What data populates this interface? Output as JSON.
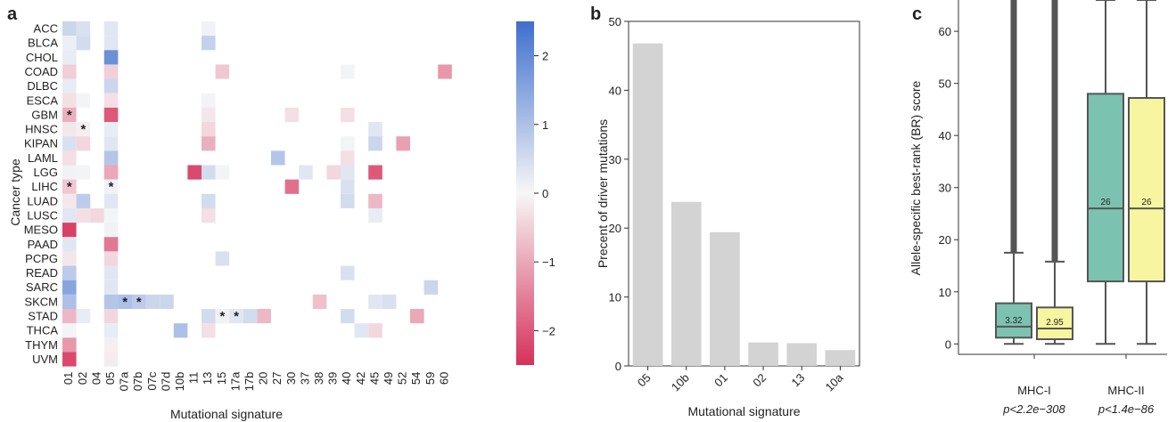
{
  "chart_data": [
    {
      "panel": "a",
      "type": "heatmap",
      "xlabel": "Mutational signature",
      "ylabel": "Cancer type",
      "rows": [
        "ACC",
        "BLCA",
        "CHOL",
        "COAD",
        "DLBC",
        "ESCA",
        "GBM",
        "HNSC",
        "KIPAN",
        "LAML",
        "LGG",
        "LIHC",
        "LUAD",
        "LUSC",
        "MESO",
        "PAAD",
        "PCPG",
        "READ",
        "SARC",
        "SKCM",
        "STAD",
        "THCA",
        "THYM",
        "UVM"
      ],
      "columns": [
        "01",
        "02",
        "04",
        "05",
        "07a",
        "07b",
        "07c",
        "07d",
        "10b",
        "11",
        "13",
        "15",
        "17a",
        "17b",
        "20",
        "27",
        "30",
        "37",
        "38",
        "39",
        "40",
        "42",
        "45",
        "49",
        "52",
        "54",
        "59",
        "60"
      ],
      "colorbar": {
        "min": -2.5,
        "max": 2.5,
        "ticks": [
          2,
          1,
          0,
          -1,
          -2
        ],
        "tick_labels": [
          "2",
          "1",
          "0",
          "−1",
          "−2"
        ],
        "low_color": "#d6315b",
        "mid_color": "#f7f7f7",
        "high_color": "#3e6fce"
      },
      "cells": [
        {
          "row": "ACC",
          "col": "01",
          "value": 0.6
        },
        {
          "row": "ACC",
          "col": "02",
          "value": 0.4
        },
        {
          "row": "ACC",
          "col": "05",
          "value": 0.3
        },
        {
          "row": "ACC",
          "col": "13",
          "value": 0.1
        },
        {
          "row": "BLCA",
          "col": "01",
          "value": 0.15
        },
        {
          "row": "BLCA",
          "col": "02",
          "value": 0.5
        },
        {
          "row": "BLCA",
          "col": "05",
          "value": 0.3
        },
        {
          "row": "BLCA",
          "col": "13",
          "value": 0.7
        },
        {
          "row": "CHOL",
          "col": "01",
          "value": 0.2
        },
        {
          "row": "CHOL",
          "col": "05",
          "value": 1.9
        },
        {
          "row": "COAD",
          "col": "01",
          "value": -0.5
        },
        {
          "row": "COAD",
          "col": "05",
          "value": -0.5
        },
        {
          "row": "COAD",
          "col": "15",
          "value": -0.6
        },
        {
          "row": "COAD",
          "col": "40",
          "value": 0.05
        },
        {
          "row": "COAD",
          "col": "60",
          "value": -1.2
        },
        {
          "row": "DLBC",
          "col": "01",
          "value": 0.2
        },
        {
          "row": "DLBC",
          "col": "05",
          "value": 0.6
        },
        {
          "row": "ESCA",
          "col": "01",
          "value": -0.3
        },
        {
          "row": "ESCA",
          "col": "02",
          "value": 0.05
        },
        {
          "row": "ESCA",
          "col": "05",
          "value": -0.3
        },
        {
          "row": "ESCA",
          "col": "13",
          "value": 0.05
        },
        {
          "row": "GBM",
          "col": "01",
          "value": -0.9,
          "star": true
        },
        {
          "row": "GBM",
          "col": "05",
          "value": -2.0
        },
        {
          "row": "GBM",
          "col": "13",
          "value": -0.2
        },
        {
          "row": "GBM",
          "col": "30",
          "value": -0.3
        },
        {
          "row": "GBM",
          "col": "40",
          "value": -0.3
        },
        {
          "row": "HNSC",
          "col": "01",
          "value": -0.2
        },
        {
          "row": "HNSC",
          "col": "02",
          "value": -0.1,
          "star": true
        },
        {
          "row": "HNSC",
          "col": "05",
          "value": 0.2
        },
        {
          "row": "HNSC",
          "col": "13",
          "value": -0.4
        },
        {
          "row": "HNSC",
          "col": "45",
          "value": 0.3
        },
        {
          "row": "KIPAN",
          "col": "01",
          "value": 0.4
        },
        {
          "row": "KIPAN",
          "col": "02",
          "value": -0.4
        },
        {
          "row": "KIPAN",
          "col": "05",
          "value": 0.3
        },
        {
          "row": "KIPAN",
          "col": "13",
          "value": -0.9
        },
        {
          "row": "KIPAN",
          "col": "40",
          "value": 0.05
        },
        {
          "row": "KIPAN",
          "col": "45",
          "value": 0.6
        },
        {
          "row": "KIPAN",
          "col": "52",
          "value": -1.1
        },
        {
          "row": "LAML",
          "col": "01",
          "value": -0.3
        },
        {
          "row": "LAML",
          "col": "05",
          "value": 0.9
        },
        {
          "row": "LAML",
          "col": "27",
          "value": 0.9
        },
        {
          "row": "LAML",
          "col": "40",
          "value": -0.3
        },
        {
          "row": "LGG",
          "col": "01",
          "value": 0.1
        },
        {
          "row": "LGG",
          "col": "02",
          "value": 0.05
        },
        {
          "row": "LGG",
          "col": "05",
          "value": -1.0
        },
        {
          "row": "LGG",
          "col": "11",
          "value": -2.2
        },
        {
          "row": "LGG",
          "col": "13",
          "value": 0.5
        },
        {
          "row": "LGG",
          "col": "15",
          "value": 0.05
        },
        {
          "row": "LGG",
          "col": "37",
          "value": 0.3
        },
        {
          "row": "LGG",
          "col": "39",
          "value": -0.4
        },
        {
          "row": "LGG",
          "col": "40",
          "value": 0.3
        },
        {
          "row": "LGG",
          "col": "45",
          "value": -2.0
        },
        {
          "row": "LIHC",
          "col": "01",
          "value": -0.6,
          "star": true
        },
        {
          "row": "LIHC",
          "col": "05",
          "value": 0.1,
          "star": true
        },
        {
          "row": "LIHC",
          "col": "30",
          "value": -1.7
        },
        {
          "row": "LIHC",
          "col": "40",
          "value": 0.4
        },
        {
          "row": "LUAD",
          "col": "01",
          "value": -0.2
        },
        {
          "row": "LUAD",
          "col": "02",
          "value": 0.8
        },
        {
          "row": "LUAD",
          "col": "05",
          "value": 0.3
        },
        {
          "row": "LUAD",
          "col": "13",
          "value": 0.5
        },
        {
          "row": "LUAD",
          "col": "40",
          "value": 0.5
        },
        {
          "row": "LUAD",
          "col": "45",
          "value": -0.8
        },
        {
          "row": "LUSC",
          "col": "01",
          "value": 0.3
        },
        {
          "row": "LUSC",
          "col": "02",
          "value": -0.3
        },
        {
          "row": "LUSC",
          "col": "04",
          "value": -0.4
        },
        {
          "row": "LUSC",
          "col": "05",
          "value": 0.05
        },
        {
          "row": "LUSC",
          "col": "13",
          "value": -0.3
        },
        {
          "row": "LUSC",
          "col": "45",
          "value": 0.2
        },
        {
          "row": "MESO",
          "col": "01",
          "value": -2.3
        },
        {
          "row": "MESO",
          "col": "05",
          "value": 0.1
        },
        {
          "row": "PAAD",
          "col": "01",
          "value": 0.3
        },
        {
          "row": "PAAD",
          "col": "05",
          "value": -1.6
        },
        {
          "row": "PCPG",
          "col": "01",
          "value": -0.2
        },
        {
          "row": "PCPG",
          "col": "05",
          "value": -0.4
        },
        {
          "row": "PCPG",
          "col": "15",
          "value": 0.4
        },
        {
          "row": "READ",
          "col": "01",
          "value": 0.8
        },
        {
          "row": "READ",
          "col": "05",
          "value": 0.3
        },
        {
          "row": "READ",
          "col": "40",
          "value": 0.4
        },
        {
          "row": "SARC",
          "col": "01",
          "value": 1.5
        },
        {
          "row": "SARC",
          "col": "05",
          "value": 0.3
        },
        {
          "row": "SARC",
          "col": "59",
          "value": 0.6
        },
        {
          "row": "SKCM",
          "col": "01",
          "value": 1.0
        },
        {
          "row": "SKCM",
          "col": "05",
          "value": 0.9
        },
        {
          "row": "SKCM",
          "col": "07a",
          "value": 1.0,
          "star": true
        },
        {
          "row": "SKCM",
          "col": "07b",
          "value": 0.8,
          "star": true
        },
        {
          "row": "SKCM",
          "col": "07c",
          "value": 0.6
        },
        {
          "row": "SKCM",
          "col": "07d",
          "value": 0.6
        },
        {
          "row": "SKCM",
          "col": "38",
          "value": -0.7
        },
        {
          "row": "SKCM",
          "col": "45",
          "value": 0.3
        },
        {
          "row": "SKCM",
          "col": "49",
          "value": 0.4
        },
        {
          "row": "STAD",
          "col": "01",
          "value": -0.8
        },
        {
          "row": "STAD",
          "col": "02",
          "value": 0.2
        },
        {
          "row": "STAD",
          "col": "05",
          "value": -0.4
        },
        {
          "row": "STAD",
          "col": "13",
          "value": 0.5
        },
        {
          "row": "STAD",
          "col": "15",
          "value": 0.1,
          "star": true
        },
        {
          "row": "STAD",
          "col": "17a",
          "value": 0.3,
          "star": true
        },
        {
          "row": "STAD",
          "col": "17b",
          "value": 0.5
        },
        {
          "row": "STAD",
          "col": "20",
          "value": -0.8
        },
        {
          "row": "STAD",
          "col": "40",
          "value": 0.5
        },
        {
          "row": "STAD",
          "col": "54",
          "value": -1.0
        },
        {
          "row": "THCA",
          "col": "01",
          "value": 0.05
        },
        {
          "row": "THCA",
          "col": "05",
          "value": 0.2
        },
        {
          "row": "THCA",
          "col": "10b",
          "value": 1.0
        },
        {
          "row": "THCA",
          "col": "13",
          "value": -0.3
        },
        {
          "row": "THCA",
          "col": "42",
          "value": 0.3
        },
        {
          "row": "THCA",
          "col": "45",
          "value": -0.4
        },
        {
          "row": "THYM",
          "col": "01",
          "value": -1.2
        },
        {
          "row": "THYM",
          "col": "05",
          "value": -0.1
        },
        {
          "row": "UVM",
          "col": "01",
          "value": -2.2
        },
        {
          "row": "UVM",
          "col": "05",
          "value": -0.15
        }
      ]
    },
    {
      "panel": "b",
      "type": "bar",
      "xlabel": "Mutational signature",
      "ylabel": "Precent of driver mutations",
      "categories": [
        "05",
        "10b",
        "01",
        "02",
        "13",
        "10a"
      ],
      "values": [
        46.8,
        23.8,
        19.4,
        3.4,
        3.3,
        2.3
      ],
      "ylim": [
        0,
        50
      ],
      "yticks": [
        0,
        10,
        20,
        30,
        40,
        50
      ],
      "bar_color": "#d3d3d3"
    },
    {
      "panel": "c",
      "type": "box",
      "ylabel": "Allele-specific best-rank (BR) score",
      "ylim": [
        -2,
        66
      ],
      "yticks": [
        0,
        10,
        20,
        30,
        40,
        50,
        60
      ],
      "groups": [
        {
          "label": "MHC-I",
          "pvalue": "p<2.2e−308",
          "boxes": [
            {
              "color": "#7cc2b0",
              "q1": 1.2,
              "median": 3.32,
              "q3": 7.8,
              "whisker_low": 0,
              "whisker_high": 17.5,
              "median_label": "3.32",
              "outliers_from": 17.5,
              "outliers_to": 66
            },
            {
              "color": "#f8f5a0",
              "q1": 0.9,
              "median": 2.95,
              "q3": 7.0,
              "whisker_low": 0,
              "whisker_high": 15.8,
              "median_label": "2.95",
              "outliers_from": 15.8,
              "outliers_to": 66
            }
          ]
        },
        {
          "label": "MHC-II",
          "pvalue": "p<1.4e−86",
          "boxes": [
            {
              "color": "#7cc2b0",
              "q1": 12,
              "median": 26,
              "q3": 48,
              "whisker_low": 0,
              "whisker_high": 66,
              "median_label": "26"
            },
            {
              "color": "#f8f5a0",
              "q1": 12,
              "median": 26,
              "q3": 47.2,
              "whisker_low": 0,
              "whisker_high": 66,
              "median_label": "26"
            }
          ]
        }
      ]
    }
  ],
  "panel_labels": [
    "a",
    "b",
    "c"
  ]
}
